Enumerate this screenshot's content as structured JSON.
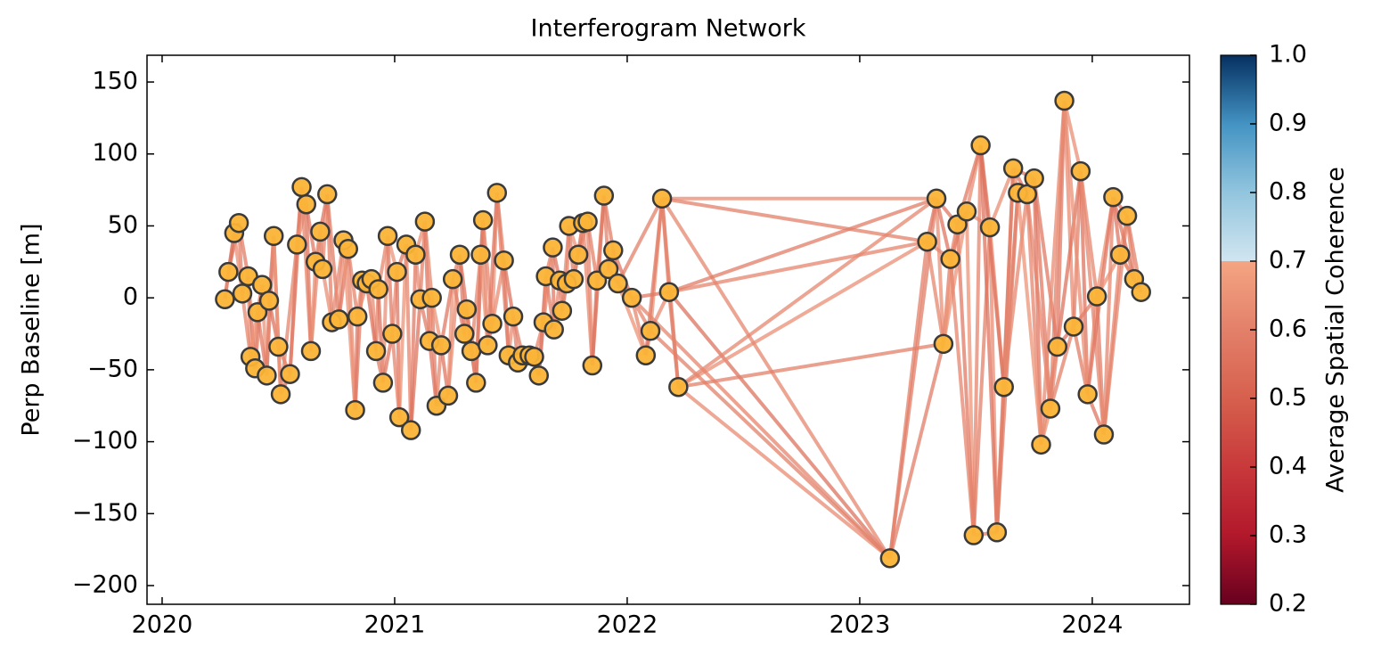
{
  "chart_data": {
    "type": "network",
    "title": "Interferogram Network",
    "y_label": "Perp Baseline [m]",
    "colorbar_label": "Average Spatial Coherence",
    "xlim": [
      2019.935,
      2024.418
    ],
    "xticks": [
      2020,
      2021,
      2022,
      2023,
      2024
    ],
    "ylim": [
      -213,
      168.6
    ],
    "yticks": [
      {
        "value": -200,
        "label": "−200"
      },
      {
        "value": -150,
        "label": "−150"
      },
      {
        "value": -100,
        "label": "−100"
      },
      {
        "value": -50,
        "label": "−50"
      },
      0,
      50,
      100,
      150
    ],
    "clim": [
      0.2,
      1.0
    ],
    "cticks": [
      0.2,
      0.3,
      0.4,
      0.5,
      0.6,
      0.7,
      0.8,
      0.9,
      {
        "value": 1.0,
        "label": "1.0"
      }
    ],
    "node_color": "#fbb437",
    "x": [
      2020.27,
      2020.285,
      2020.31,
      2020.33,
      2020.345,
      2020.37,
      2020.38,
      2020.4,
      2020.41,
      2020.43,
      2020.45,
      2020.46,
      2020.48,
      2020.5,
      2020.51,
      2020.55,
      2020.58,
      2020.6,
      2020.62,
      2020.64,
      2020.66,
      2020.68,
      2020.69,
      2020.71,
      2020.73,
      2020.76,
      2020.78,
      2020.8,
      2020.83,
      2020.84,
      2020.86,
      2020.88,
      2020.9,
      2020.92,
      2020.93,
      2020.95,
      2020.97,
      2020.99,
      2021.01,
      2021.02,
      2021.05,
      2021.07,
      2021.09,
      2021.11,
      2021.13,
      2021.15,
      2021.16,
      2021.18,
      2021.2,
      2021.23,
      2021.25,
      2021.28,
      2021.3,
      2021.31,
      2021.33,
      2021.35,
      2021.37,
      2021.38,
      2021.4,
      2021.42,
      2021.44,
      2021.47,
      2021.49,
      2021.51,
      2021.53,
      2021.55,
      2021.58,
      2021.6,
      2021.62,
      2021.64,
      2021.65,
      2021.68,
      2021.685,
      2021.71,
      2021.72,
      2021.74,
      2021.75,
      2021.77,
      2021.79,
      2021.81,
      2021.83,
      2021.85,
      2021.87,
      2021.9,
      2021.92,
      2021.94,
      2021.96,
      2022.02,
      2022.08,
      2022.1,
      2022.15,
      2022.18,
      2022.22,
      2023.13,
      2023.29,
      2023.33,
      2023.36,
      2023.39,
      2023.42,
      2023.46,
      2023.49,
      2023.52,
      2023.56,
      2023.59,
      2023.62,
      2023.66,
      2023.68,
      2023.72,
      2023.75,
      2023.78,
      2023.82,
      2023.85,
      2023.88,
      2023.92,
      2023.95,
      2023.98,
      2024.02,
      2024.05,
      2024.09,
      2024.12,
      2024.15,
      2024.18,
      2024.21
    ],
    "values": [
      -1,
      18,
      45,
      52,
      3,
      15,
      -41,
      -49,
      -10,
      9,
      -54,
      -2,
      43,
      -34,
      -67,
      -53,
      37,
      77,
      65,
      -37,
      25,
      46,
      20,
      72,
      -17,
      -15,
      40,
      34,
      -78,
      -13,
      12,
      10,
      13,
      -37,
      6,
      -59,
      43,
      -25,
      18,
      -83,
      37,
      -92,
      30,
      -1,
      53,
      -30,
      0,
      -75,
      -33,
      -68,
      13,
      30,
      -25,
      -8,
      -37,
      -59,
      30,
      54,
      -33,
      -18,
      73,
      26,
      -40,
      -13,
      -45,
      -40,
      -40,
      -41,
      -54,
      -17,
      15,
      35,
      -22,
      12,
      -9,
      10,
      50,
      13,
      30,
      52,
      53,
      -47,
      12,
      71,
      20,
      33,
      10,
      0,
      -40,
      -23,
      69,
      4,
      -62,
      -181,
      39,
      69,
      -32,
      27,
      51,
      60,
      -165,
      106,
      49,
      -163,
      -62,
      90,
      73,
      72,
      83,
      -102,
      -77,
      -34,
      137,
      -20,
      88,
      -67,
      1,
      -95,
      70,
      30,
      57,
      13,
      4
    ],
    "edges": [
      [
        0,
        1,
        0.61
      ],
      [
        1,
        2,
        0.58
      ],
      [
        2,
        3,
        0.63
      ],
      [
        3,
        4,
        0.6
      ],
      [
        4,
        5,
        0.56
      ],
      [
        5,
        6,
        0.64
      ],
      [
        6,
        7,
        0.59
      ],
      [
        7,
        8,
        0.62
      ],
      [
        8,
        9,
        0.57
      ],
      [
        9,
        10,
        0.65
      ],
      [
        10,
        11,
        0.61
      ],
      [
        11,
        12,
        0.58
      ],
      [
        12,
        13,
        0.63
      ],
      [
        13,
        14,
        0.6
      ],
      [
        14,
        15,
        0.56
      ],
      [
        15,
        16,
        0.64
      ],
      [
        16,
        17,
        0.59
      ],
      [
        17,
        18,
        0.62
      ],
      [
        18,
        19,
        0.57
      ],
      [
        19,
        20,
        0.65
      ],
      [
        20,
        21,
        0.61
      ],
      [
        21,
        22,
        0.58
      ],
      [
        22,
        23,
        0.63
      ],
      [
        23,
        24,
        0.6
      ],
      [
        24,
        25,
        0.56
      ],
      [
        25,
        26,
        0.64
      ],
      [
        26,
        27,
        0.59
      ],
      [
        27,
        28,
        0.62
      ],
      [
        28,
        29,
        0.57
      ],
      [
        29,
        30,
        0.65
      ],
      [
        30,
        31,
        0.61
      ],
      [
        31,
        32,
        0.58
      ],
      [
        32,
        33,
        0.63
      ],
      [
        33,
        34,
        0.6
      ],
      [
        34,
        35,
        0.56
      ],
      [
        35,
        36,
        0.64
      ],
      [
        36,
        37,
        0.59
      ],
      [
        37,
        38,
        0.62
      ],
      [
        38,
        39,
        0.57
      ],
      [
        39,
        40,
        0.65
      ],
      [
        40,
        41,
        0.61
      ],
      [
        41,
        42,
        0.58
      ],
      [
        42,
        43,
        0.63
      ],
      [
        43,
        44,
        0.6
      ],
      [
        44,
        45,
        0.56
      ],
      [
        45,
        46,
        0.64
      ],
      [
        46,
        47,
        0.59
      ],
      [
        47,
        48,
        0.62
      ],
      [
        48,
        49,
        0.57
      ],
      [
        49,
        50,
        0.65
      ],
      [
        50,
        51,
        0.61
      ],
      [
        51,
        52,
        0.58
      ],
      [
        52,
        53,
        0.63
      ],
      [
        53,
        54,
        0.6
      ],
      [
        54,
        55,
        0.56
      ],
      [
        55,
        56,
        0.64
      ],
      [
        56,
        57,
        0.59
      ],
      [
        57,
        58,
        0.62
      ],
      [
        58,
        59,
        0.57
      ],
      [
        59,
        60,
        0.65
      ],
      [
        60,
        61,
        0.61
      ],
      [
        61,
        62,
        0.58
      ],
      [
        62,
        63,
        0.63
      ],
      [
        63,
        64,
        0.6
      ],
      [
        64,
        65,
        0.56
      ],
      [
        65,
        66,
        0.64
      ],
      [
        66,
        67,
        0.59
      ],
      [
        67,
        68,
        0.62
      ],
      [
        68,
        69,
        0.57
      ],
      [
        69,
        70,
        0.65
      ],
      [
        70,
        71,
        0.61
      ],
      [
        71,
        72,
        0.58
      ],
      [
        72,
        73,
        0.63
      ],
      [
        73,
        74,
        0.6
      ],
      [
        74,
        75,
        0.56
      ],
      [
        75,
        76,
        0.64
      ],
      [
        76,
        77,
        0.59
      ],
      [
        77,
        78,
        0.62
      ],
      [
        78,
        79,
        0.57
      ],
      [
        79,
        80,
        0.65
      ],
      [
        80,
        81,
        0.61
      ],
      [
        81,
        82,
        0.58
      ],
      [
        82,
        83,
        0.63
      ],
      [
        83,
        84,
        0.6
      ],
      [
        84,
        85,
        0.56
      ],
      [
        85,
        86,
        0.64
      ],
      [
        86,
        87,
        0.59
      ],
      [
        87,
        88,
        0.62
      ],
      [
        88,
        89,
        0.57
      ],
      [
        89,
        90,
        0.65
      ],
      [
        90,
        91,
        0.61
      ],
      [
        91,
        92,
        0.58
      ],
      [
        92,
        93,
        0.63
      ],
      [
        93,
        94,
        0.6
      ],
      [
        94,
        95,
        0.56
      ],
      [
        95,
        96,
        0.64
      ],
      [
        96,
        97,
        0.59
      ],
      [
        97,
        98,
        0.62
      ],
      [
        98,
        99,
        0.57
      ],
      [
        99,
        100,
        0.65
      ],
      [
        100,
        101,
        0.61
      ],
      [
        101,
        102,
        0.58
      ],
      [
        102,
        103,
        0.63
      ],
      [
        103,
        104,
        0.6
      ],
      [
        104,
        105,
        0.56
      ],
      [
        105,
        106,
        0.64
      ],
      [
        106,
        107,
        0.59
      ],
      [
        107,
        108,
        0.62
      ],
      [
        108,
        109,
        0.57
      ],
      [
        109,
        110,
        0.65
      ],
      [
        110,
        111,
        0.61
      ],
      [
        111,
        112,
        0.58
      ],
      [
        112,
        113,
        0.63
      ],
      [
        113,
        114,
        0.6
      ],
      [
        114,
        115,
        0.56
      ],
      [
        115,
        116,
        0.64
      ],
      [
        116,
        117,
        0.59
      ],
      [
        117,
        118,
        0.62
      ],
      [
        118,
        119,
        0.57
      ],
      [
        119,
        120,
        0.65
      ],
      [
        120,
        121,
        0.61
      ],
      [
        121,
        122,
        0.58
      ],
      [
        0,
        2,
        0.6
      ],
      [
        1,
        3,
        0.56
      ],
      [
        2,
        4,
        0.64
      ],
      [
        3,
        5,
        0.59
      ],
      [
        4,
        6,
        0.62
      ],
      [
        5,
        7,
        0.57
      ],
      [
        6,
        8,
        0.65
      ],
      [
        7,
        9,
        0.61
      ],
      [
        8,
        10,
        0.58
      ],
      [
        9,
        11,
        0.63
      ],
      [
        10,
        12,
        0.6
      ],
      [
        11,
        13,
        0.56
      ],
      [
        12,
        14,
        0.64
      ],
      [
        13,
        15,
        0.59
      ],
      [
        14,
        16,
        0.62
      ],
      [
        15,
        17,
        0.57
      ],
      [
        16,
        18,
        0.65
      ],
      [
        17,
        19,
        0.61
      ],
      [
        18,
        20,
        0.58
      ],
      [
        19,
        21,
        0.63
      ],
      [
        20,
        22,
        0.6
      ],
      [
        21,
        23,
        0.56
      ],
      [
        22,
        24,
        0.64
      ],
      [
        23,
        25,
        0.59
      ],
      [
        24,
        26,
        0.62
      ],
      [
        25,
        27,
        0.57
      ],
      [
        26,
        28,
        0.65
      ],
      [
        27,
        29,
        0.61
      ],
      [
        28,
        30,
        0.58
      ],
      [
        29,
        31,
        0.63
      ],
      [
        30,
        32,
        0.6
      ],
      [
        31,
        33,
        0.56
      ],
      [
        32,
        34,
        0.64
      ],
      [
        33,
        35,
        0.59
      ],
      [
        34,
        36,
        0.62
      ],
      [
        35,
        37,
        0.57
      ],
      [
        36,
        38,
        0.65
      ],
      [
        37,
        39,
        0.61
      ],
      [
        38,
        40,
        0.58
      ],
      [
        39,
        41,
        0.63
      ],
      [
        40,
        42,
        0.6
      ],
      [
        41,
        43,
        0.56
      ],
      [
        42,
        44,
        0.64
      ],
      [
        43,
        45,
        0.59
      ],
      [
        44,
        46,
        0.62
      ],
      [
        45,
        47,
        0.57
      ],
      [
        46,
        48,
        0.65
      ],
      [
        47,
        49,
        0.61
      ],
      [
        48,
        50,
        0.58
      ],
      [
        49,
        51,
        0.63
      ],
      [
        50,
        52,
        0.6
      ],
      [
        51,
        53,
        0.56
      ],
      [
        52,
        54,
        0.64
      ],
      [
        53,
        55,
        0.59
      ],
      [
        54,
        56,
        0.62
      ],
      [
        55,
        57,
        0.57
      ],
      [
        56,
        58,
        0.65
      ],
      [
        57,
        59,
        0.61
      ],
      [
        58,
        60,
        0.58
      ],
      [
        59,
        61,
        0.63
      ],
      [
        60,
        62,
        0.6
      ],
      [
        61,
        63,
        0.56
      ],
      [
        62,
        64,
        0.64
      ],
      [
        63,
        65,
        0.59
      ],
      [
        64,
        66,
        0.62
      ],
      [
        65,
        67,
        0.57
      ],
      [
        66,
        68,
        0.65
      ],
      [
        67,
        69,
        0.61
      ],
      [
        68,
        70,
        0.58
      ],
      [
        69,
        71,
        0.63
      ],
      [
        70,
        72,
        0.6
      ],
      [
        71,
        73,
        0.56
      ],
      [
        72,
        74,
        0.64
      ],
      [
        73,
        75,
        0.59
      ],
      [
        74,
        76,
        0.62
      ],
      [
        75,
        77,
        0.57
      ],
      [
        76,
        78,
        0.65
      ],
      [
        77,
        79,
        0.61
      ],
      [
        78,
        80,
        0.58
      ],
      [
        79,
        81,
        0.63
      ],
      [
        80,
        82,
        0.6
      ],
      [
        81,
        83,
        0.56
      ],
      [
        82,
        84,
        0.64
      ],
      [
        83,
        85,
        0.59
      ],
      [
        84,
        86,
        0.62
      ],
      [
        85,
        87,
        0.57
      ],
      [
        86,
        88,
        0.65
      ],
      [
        87,
        89,
        0.61
      ],
      [
        88,
        90,
        0.58
      ],
      [
        89,
        91,
        0.63
      ],
      [
        90,
        92,
        0.6
      ],
      [
        91,
        93,
        0.56
      ],
      [
        92,
        94,
        0.64
      ],
      [
        93,
        95,
        0.59
      ],
      [
        94,
        96,
        0.62
      ],
      [
        95,
        97,
        0.57
      ],
      [
        96,
        98,
        0.65
      ],
      [
        97,
        99,
        0.61
      ],
      [
        98,
        100,
        0.58
      ],
      [
        99,
        101,
        0.63
      ],
      [
        100,
        102,
        0.6
      ],
      [
        101,
        103,
        0.56
      ],
      [
        102,
        104,
        0.64
      ],
      [
        103,
        105,
        0.59
      ],
      [
        104,
        106,
        0.62
      ],
      [
        105,
        107,
        0.57
      ],
      [
        106,
        108,
        0.65
      ],
      [
        107,
        109,
        0.61
      ],
      [
        108,
        110,
        0.58
      ],
      [
        109,
        111,
        0.63
      ],
      [
        110,
        112,
        0.6
      ],
      [
        111,
        113,
        0.56
      ],
      [
        112,
        114,
        0.64
      ],
      [
        113,
        115,
        0.59
      ],
      [
        114,
        116,
        0.62
      ],
      [
        115,
        117,
        0.57
      ],
      [
        116,
        118,
        0.65
      ],
      [
        117,
        119,
        0.61
      ],
      [
        118,
        120,
        0.58
      ],
      [
        119,
        121,
        0.63
      ],
      [
        120,
        122,
        0.6
      ],
      [
        93,
        96,
        0.59
      ],
      [
        94,
        97,
        0.62
      ],
      [
        95,
        98,
        0.57
      ],
      [
        96,
        99,
        0.65
      ],
      [
        97,
        100,
        0.61
      ],
      [
        98,
        101,
        0.58
      ],
      [
        99,
        102,
        0.63
      ],
      [
        100,
        103,
        0.6
      ],
      [
        101,
        104,
        0.56
      ],
      [
        102,
        105,
        0.64
      ],
      [
        103,
        106,
        0.59
      ],
      [
        104,
        107,
        0.62
      ],
      [
        105,
        108,
        0.57
      ],
      [
        106,
        109,
        0.65
      ],
      [
        107,
        110,
        0.61
      ],
      [
        108,
        111,
        0.58
      ],
      [
        109,
        112,
        0.63
      ],
      [
        110,
        113,
        0.6
      ],
      [
        111,
        114,
        0.56
      ],
      [
        112,
        115,
        0.64
      ],
      [
        113,
        116,
        0.59
      ],
      [
        114,
        117,
        0.62
      ],
      [
        115,
        118,
        0.57
      ],
      [
        116,
        119,
        0.65
      ],
      [
        117,
        120,
        0.61
      ],
      [
        118,
        121,
        0.58
      ],
      [
        119,
        122,
        0.63
      ],
      [
        87,
        93,
        0.61
      ],
      [
        89,
        93,
        0.6
      ],
      [
        90,
        93,
        0.62
      ],
      [
        90,
        94,
        0.6
      ],
      [
        90,
        95,
        0.63
      ],
      [
        91,
        94,
        0.61
      ],
      [
        91,
        95,
        0.59
      ],
      [
        92,
        95,
        0.62
      ],
      [
        92,
        96,
        0.6
      ],
      [
        87,
        91,
        0.58
      ],
      [
        86,
        90,
        0.6
      ]
    ]
  }
}
